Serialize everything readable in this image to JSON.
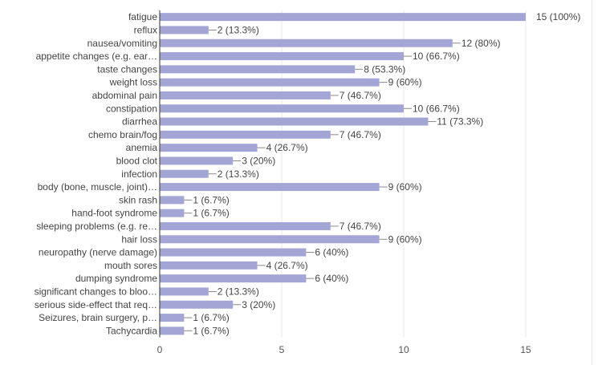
{
  "chart_data": {
    "type": "bar",
    "orientation": "horizontal",
    "categories": [
      "fatigue",
      "reflux",
      "nausea/vomiting",
      "appetite changes (e.g. ear…",
      "taste changes",
      "weight loss",
      "abdominal pain",
      "constipation",
      "diarrhea",
      "chemo brain/fog",
      "anemia",
      "blood clot",
      "infection",
      "body (bone, muscle, joint)…",
      "skin rash",
      "hand-foot syndrome",
      "sleeping problems (e.g. re…",
      "hair loss",
      "neuropathy (nerve damage)",
      "mouth sores",
      "dumping syndrome",
      "significant changes to bloo…",
      "serious side-effect that req…",
      "Seizures, brain surgery, p…",
      "Tachycardia"
    ],
    "values": [
      15,
      2,
      12,
      10,
      8,
      9,
      7,
      10,
      11,
      7,
      4,
      3,
      2,
      9,
      1,
      1,
      7,
      9,
      6,
      4,
      6,
      2,
      3,
      1,
      1
    ],
    "data_labels": [
      "15 (100%)",
      "2 (13.3%)",
      "12 (80%)",
      "10 (66.7%)",
      "8 (53.3%)",
      "9 (60%)",
      "7 (46.7%)",
      "10 (66.7%)",
      "11 (73.3%)",
      "7 (46.7%)",
      "4 (26.7%)",
      "3 (20%)",
      "2 (13.3%)",
      "9 (60%)",
      "1 (6.7%)",
      "1 (6.7%)",
      "7 (46.7%)",
      "9 (60%)",
      "6 (40%)",
      "4 (26.7%)",
      "6 (40%)",
      "2 (13.3%)",
      "3 (20%)",
      "1 (6.7%)",
      "1 (6.7%)"
    ],
    "xlim": [
      0,
      15
    ],
    "xticks": [
      "0",
      "5",
      "10",
      "15"
    ],
    "xtick_values": [
      0,
      5,
      10,
      15
    ],
    "grid": true,
    "bar_color": "#a3a6d5"
  }
}
